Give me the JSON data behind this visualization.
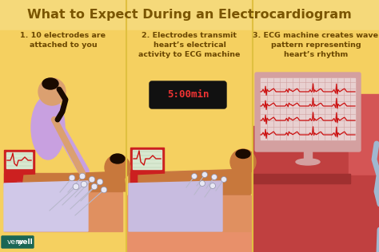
{
  "title": "What to Expect During an Electrocardiogram",
  "title_color": "#7a5500",
  "title_fontsize": 11.5,
  "bg_color": "#f5d97a",
  "step1_text": "1. 10 electrodes are\nattached to you",
  "step2_text": "2. Electrodes transmit\nheart’s electrical\nactivity to ECG machine",
  "step3_text": "3. ECG machine creates wave\npattern representing\nheart’s rhythm",
  "step_text_color": "#6b4700",
  "step_fontsize": 6.8,
  "brand_very": "very",
  "brand_well": "well",
  "brand_bg": "#1a6655",
  "brand_very_color": "#ffffff",
  "brand_well_color": "#ffffff",
  "panel1_bg": "#f5d060",
  "panel2_bg": "#f5d060",
  "panel3_bg_top": "#f5d060",
  "panel3_floor": "#c44444",
  "panel3_wall_right": "#d45555",
  "floor_color1": "#e8906a",
  "floor_color2": "#d47555",
  "floor_color3": "#c04040",
  "skin_dark": "#c8783c",
  "skin_light": "#dba070",
  "hair_dark": "#1a0a00",
  "nurse_shirt": "#c8a0e0",
  "sheet_color": "#d0c8e8",
  "sheet_color2": "#c8bce0",
  "electrode_white": "#e8e8f4",
  "ecg_red": "#cc1111",
  "machine_red": "#cc2020",
  "machine_screen_bg": "#d8e8d0",
  "machine_screen_grid": "#b0c8a8",
  "timer_bg": "#111111",
  "timer_color": "#ee3333",
  "timer_text": "5:00min",
  "monitor_frame": "#d4a0a0",
  "monitor_screen": "#e8d0d0",
  "monitor_grid_h": "#d0a0a0",
  "monitor_grid_v": "#d0a0a0",
  "monitor_ecg": "#cc1111",
  "cable_color": "#a0b8d0",
  "divider_color": "#e0c040",
  "bed_side1": "#e09060",
  "bed_top1": "#c87840",
  "bed_side2": "#e09060",
  "bed_top2": "#c87840",
  "bed_side3": "#c04040",
  "bed_top3": "#a03030"
}
